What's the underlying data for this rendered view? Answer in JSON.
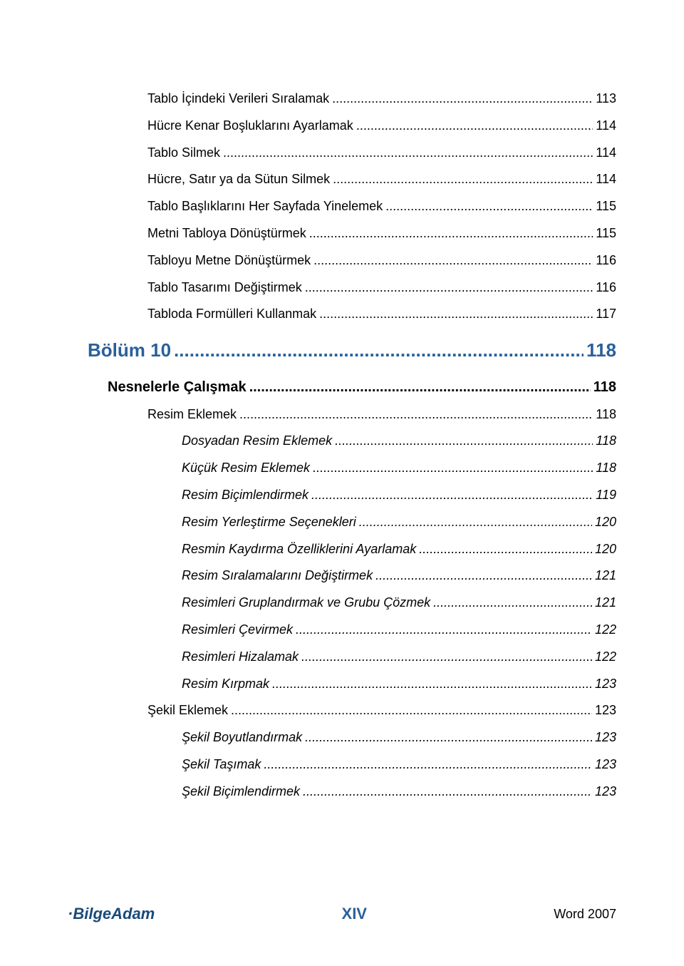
{
  "toc": [
    {
      "level": 3,
      "label": "Tablo İçindeki Verileri Sıralamak",
      "page": "113"
    },
    {
      "level": 3,
      "label": "Hücre Kenar Boşluklarını Ayarlamak",
      "page": "114"
    },
    {
      "level": 3,
      "label": "Tablo Silmek",
      "page": "114"
    },
    {
      "level": 3,
      "label": "Hücre, Satır ya da Sütun Silmek",
      "page": "114"
    },
    {
      "level": 3,
      "label": "Tablo Başlıklarını Her Sayfada Yinelemek",
      "page": "115"
    },
    {
      "level": 3,
      "label": "Metni Tabloya Dönüştürmek",
      "page": "115"
    },
    {
      "level": 3,
      "label": "Tabloyu Metne Dönüştürmek",
      "page": "116"
    },
    {
      "level": 3,
      "label": "Tablo Tasarımı Değiştirmek",
      "page": "116"
    },
    {
      "level": 3,
      "label": "Tabloda Formülleri Kullanmak",
      "page": "117"
    },
    {
      "level": 1,
      "label": "Bölüm 10",
      "page": "118"
    },
    {
      "level": 2,
      "label": "Nesnelerle Çalışmak",
      "page": "118"
    },
    {
      "level": 3,
      "label": "Resim Eklemek",
      "page": "118"
    },
    {
      "level": 4,
      "label": "Dosyadan Resim Eklemek",
      "page": "118"
    },
    {
      "level": 4,
      "label": "Küçük Resim Eklemek",
      "page": "118"
    },
    {
      "level": 4,
      "label": "Resim Biçimlendirmek",
      "page": "119"
    },
    {
      "level": 4,
      "label": "Resim Yerleştirme Seçenekleri",
      "page": "120"
    },
    {
      "level": 4,
      "label": "Resmin Kaydırma Özelliklerini Ayarlamak",
      "page": "120"
    },
    {
      "level": 4,
      "label": "Resim Sıralamalarını Değiştirmek",
      "page": "121"
    },
    {
      "level": 4,
      "label": "Resimleri Gruplandırmak ve Grubu Çözmek",
      "page": "121"
    },
    {
      "level": 4,
      "label": "Resimleri Çevirmek",
      "page": "122"
    },
    {
      "level": 4,
      "label": "Resimleri Hizalamak",
      "page": "122"
    },
    {
      "level": 4,
      "label": "Resim Kırpmak",
      "page": "123"
    },
    {
      "level": 3,
      "label": "Şekil Eklemek",
      "page": "123"
    },
    {
      "level": 4,
      "label": "Şekil Boyutlandırmak",
      "page": "123"
    },
    {
      "level": 4,
      "label": "Şekil Taşımak",
      "page": "123"
    },
    {
      "level": 4,
      "label": "Şekil Biçimlendirmek",
      "page": "123"
    }
  ],
  "footer": {
    "logo_prefix": "·",
    "logo_bilge": "Bilge",
    "logo_adam": "Adam",
    "page_number": "XIV",
    "product": "Word 2007"
  },
  "colors": {
    "heading": "#2a6099",
    "body": "#000000",
    "logo": "#1a4a7a",
    "background": "#ffffff"
  },
  "dot_leader": "................................................................................................................................................................................................"
}
